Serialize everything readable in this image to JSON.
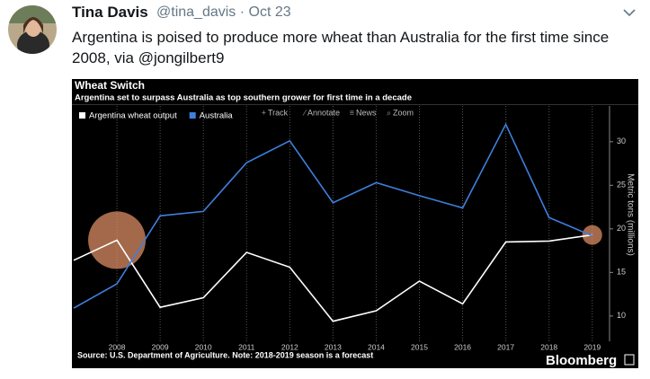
{
  "tweet": {
    "name": "Tina Davis",
    "meta": "@tina_davis · Oct 23",
    "text": "Argentina is poised to produce more wheat than Australia for the first time since 2008, via @jongilbert9"
  },
  "chart_data": {
    "type": "line",
    "title": "Wheat Switch",
    "subtitle": "Argentina set to surpass Australia as top southern grower for first time in a decade",
    "toolbar": [
      "Track",
      "Annotate",
      "News",
      "Zoom"
    ],
    "x": [
      2007,
      2008,
      2009,
      2010,
      2011,
      2012,
      2013,
      2014,
      2015,
      2016,
      2017,
      2018,
      2019
    ],
    "series": [
      {
        "name": "Argentina wheat output",
        "color": "#ffffff",
        "values": [
          16.4,
          18.7,
          11.0,
          12.1,
          17.3,
          15.6,
          9.4,
          10.6,
          14.0,
          11.4,
          18.5,
          18.6,
          19.3
        ]
      },
      {
        "name": "Australia",
        "color": "#3f7fdc",
        "values": [
          10.9,
          13.7,
          21.5,
          22.0,
          27.6,
          30.1,
          23.0,
          25.3,
          23.8,
          22.4,
          32.0,
          21.3,
          19.2
        ]
      }
    ],
    "highlight_color": "#e8956a",
    "xlim": [
      2007,
      2019.4
    ],
    "xticks": [
      2008,
      2009,
      2010,
      2011,
      2012,
      2013,
      2014,
      2015,
      2016,
      2017,
      2018,
      2019
    ],
    "ylim": [
      7.1,
      34.1
    ],
    "yticks": [
      10,
      15,
      20,
      25,
      30
    ],
    "ylabel": "Metric tons (millions)",
    "grid": true,
    "legend": "top-left",
    "source": "Source: U.S. Department of Agriculture. Note: 2018-2019 season is a forecast",
    "brand": "Bloomberg"
  }
}
